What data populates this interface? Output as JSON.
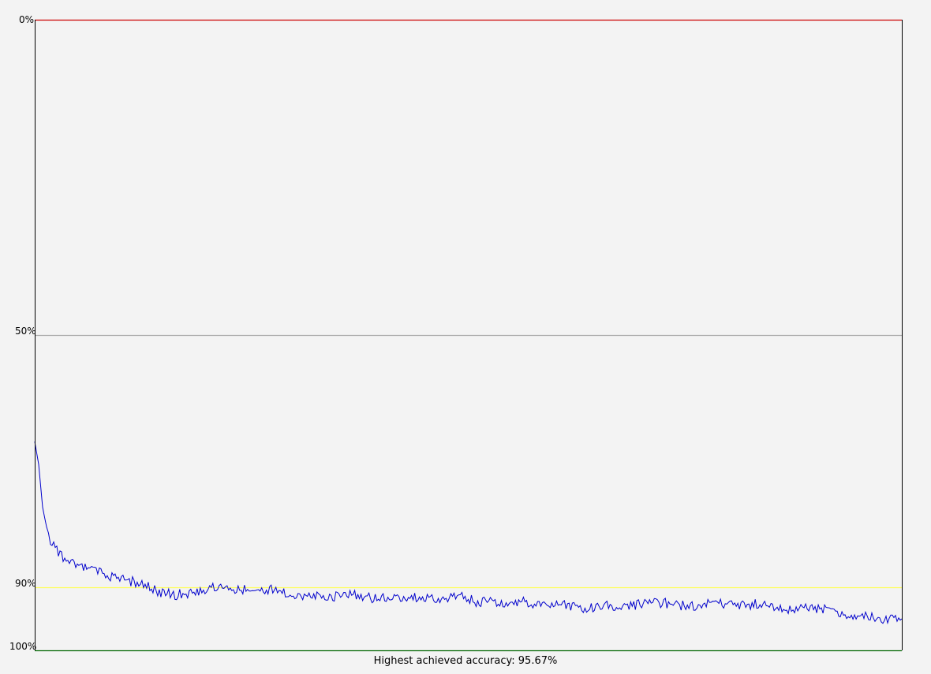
{
  "chart_data": {
    "type": "line",
    "footer": "Highest achieved accuracy: 95.67%",
    "y_axis": {
      "range": [
        0,
        100
      ],
      "inverted": true,
      "ticks": [
        {
          "value": 0,
          "label": "0%"
        },
        {
          "value": 50,
          "label": "50%"
        },
        {
          "value": 90,
          "label": "90%"
        },
        {
          "value": 100,
          "label": "100%"
        }
      ]
    },
    "reference_lines": [
      {
        "value": 0,
        "color": "#cc0000"
      },
      {
        "value": 50,
        "color": "#aaaaaa"
      },
      {
        "value": 90,
        "color": "#ffff55"
      },
      {
        "value": 100,
        "color": "#006600"
      }
    ],
    "series": [
      {
        "color": "#0000cc",
        "x": [
          0,
          5,
          10,
          15,
          20,
          30,
          40,
          60,
          80,
          100,
          120,
          140,
          160,
          180,
          200,
          220,
          240,
          260,
          280,
          300,
          320,
          340,
          360,
          380,
          400,
          420,
          440,
          460,
          480,
          500,
          520,
          540,
          560,
          580,
          600,
          620,
          640,
          660,
          680,
          700,
          720,
          740,
          760,
          780,
          800,
          820,
          840,
          860,
          880,
          900,
          920,
          940,
          960,
          980,
          1000,
          1020,
          1040,
          1060,
          1080,
          1100
        ],
        "y": [
          66.9,
          70.5,
          77.3,
          80.5,
          82.8,
          84.3,
          85.7,
          86.8,
          87.5,
          88.5,
          89.0,
          89.6,
          90.9,
          91.2,
          90.8,
          90.1,
          89.9,
          90.3,
          90.7,
          90.2,
          91.0,
          91.4,
          91.2,
          91.5,
          91.1,
          91.6,
          91.8,
          91.5,
          91.7,
          91.4,
          92.0,
          91.4,
          92.3,
          92.2,
          92.7,
          92.3,
          92.6,
          92.5,
          92.9,
          93.3,
          92.9,
          93.0,
          92.8,
          92.6,
          92.5,
          92.9,
          93.1,
          92.3,
          92.8,
          92.8,
          92.6,
          93.3,
          93.5,
          93.1,
          93.4,
          94.2,
          94.5,
          94.6,
          95.0,
          95.0
        ]
      }
    ]
  }
}
